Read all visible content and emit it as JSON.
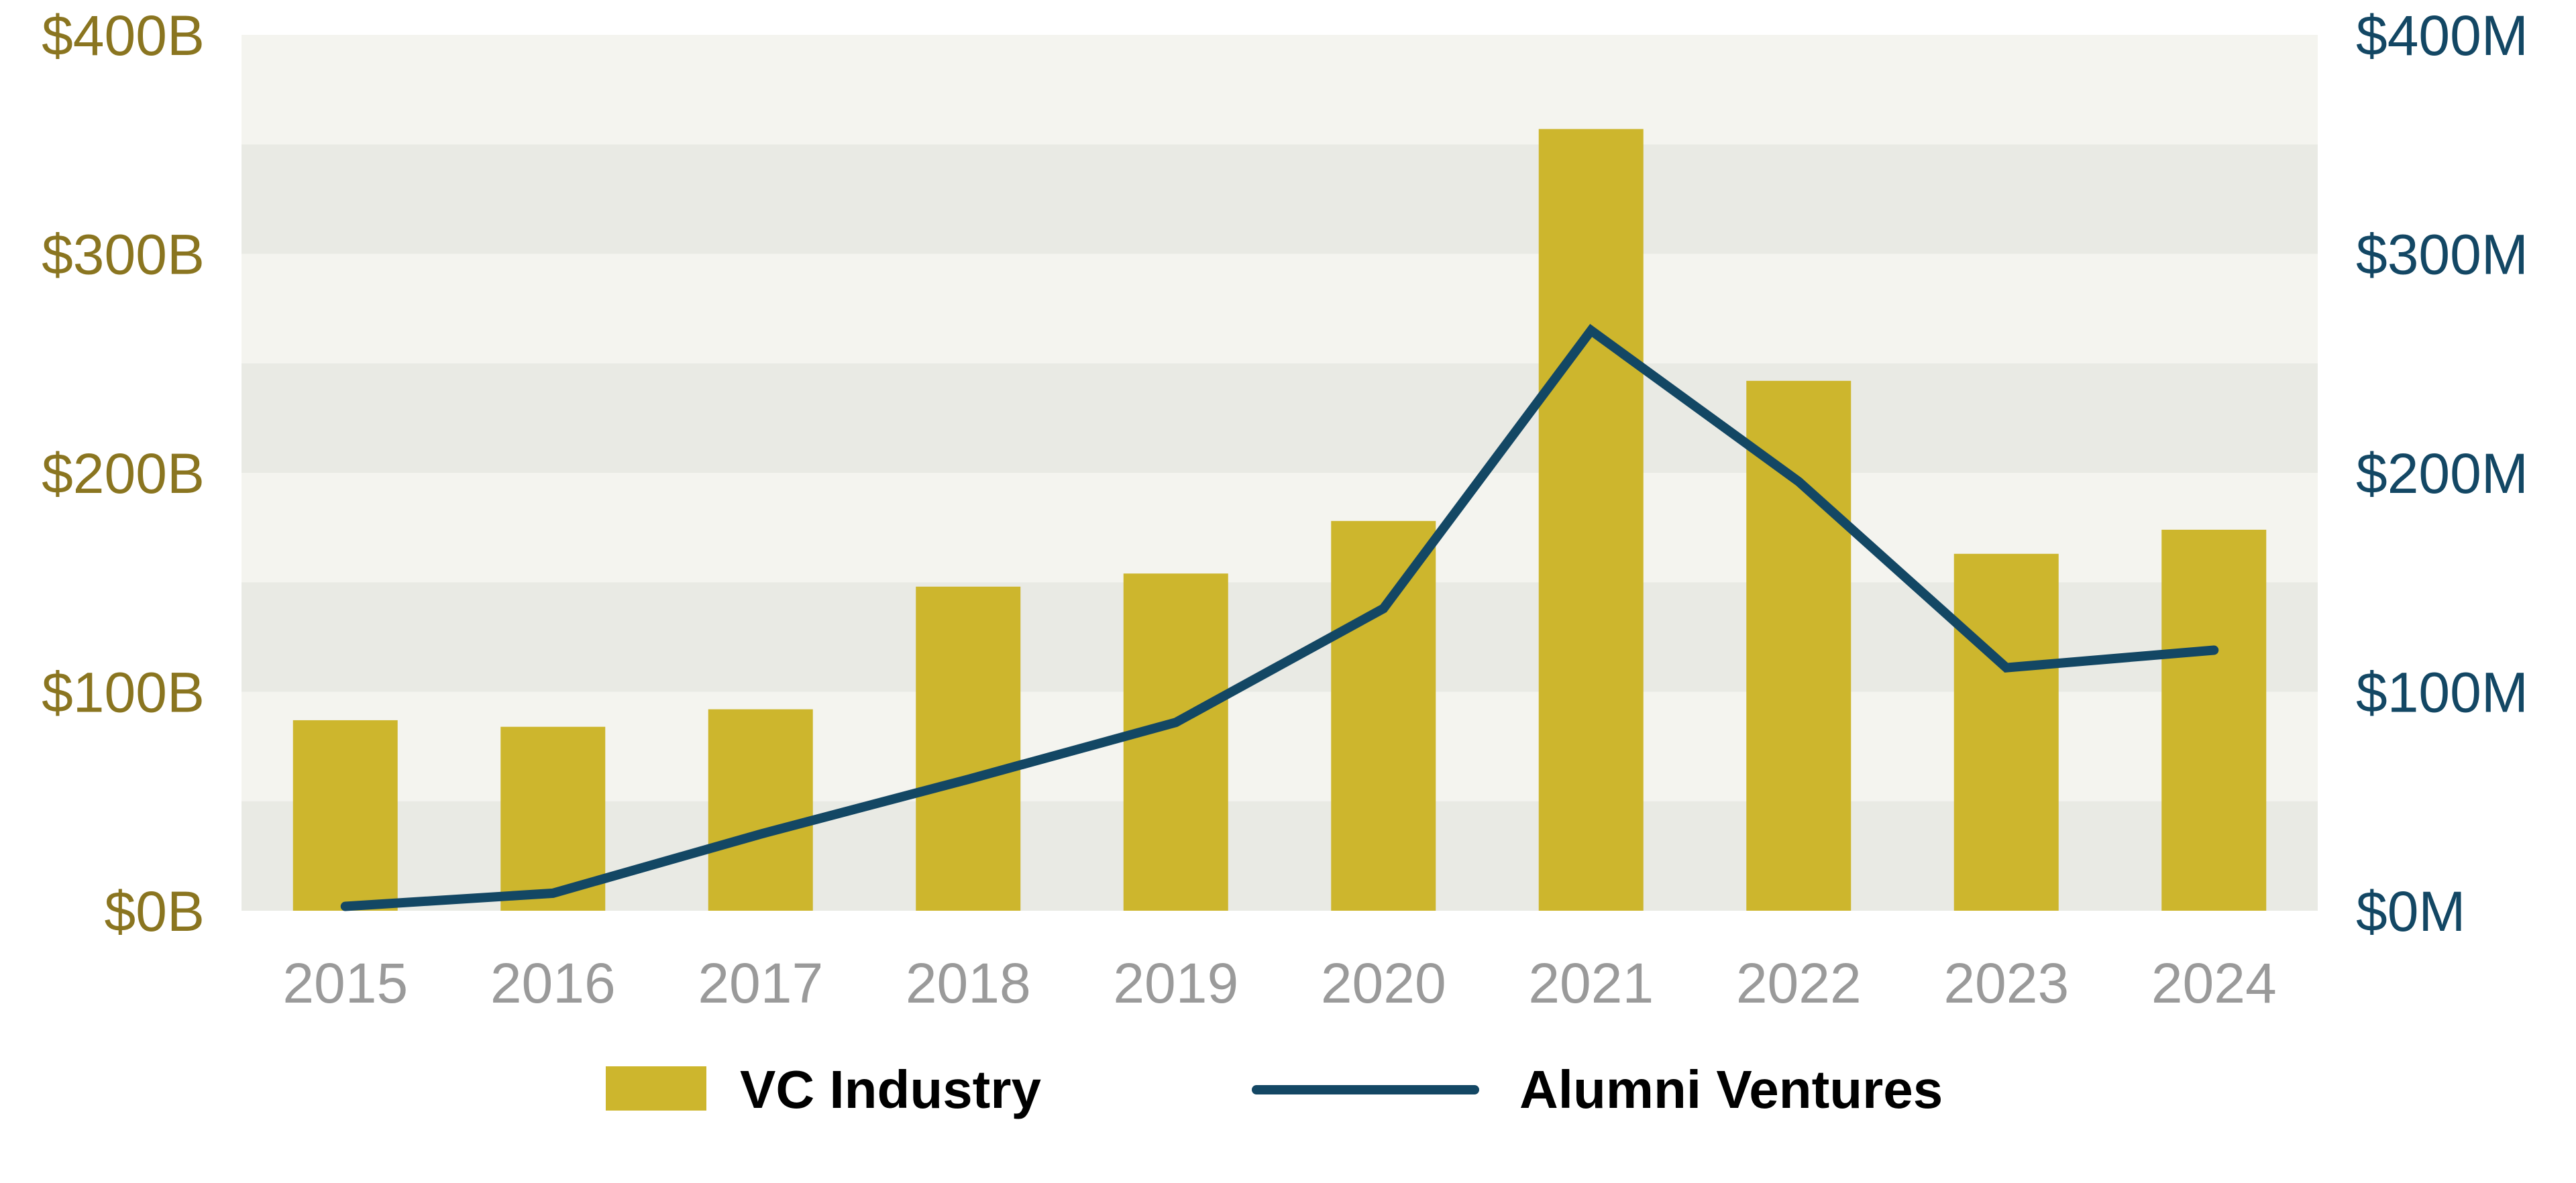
{
  "colors": {
    "bar": "#cdb62d",
    "line": "#134764",
    "left_axis_text": "#8a7520",
    "right_axis_text": "#134764",
    "x_axis_text": "#9a9a9a",
    "band_light": "#f4f4ef",
    "band_dark": "#e9eae4"
  },
  "chart_data": {
    "type": "bar+line",
    "title": "",
    "categories": [
      "2015",
      "2016",
      "2017",
      "2018",
      "2019",
      "2020",
      "2021",
      "2022",
      "2023",
      "2024"
    ],
    "series": [
      {
        "name": "VC Industry",
        "type": "bar",
        "axis": "left",
        "unit": "billions USD",
        "values": [
          87,
          84,
          92,
          148,
          154,
          178,
          357,
          242,
          163,
          174
        ]
      },
      {
        "name": "Alumni Ventures",
        "type": "line",
        "axis": "right",
        "unit": "millions USD",
        "values": [
          2,
          8,
          35,
          60,
          86,
          138,
          265,
          196,
          111,
          119
        ]
      }
    ],
    "left_axis": {
      "ylim": [
        0,
        400
      ],
      "ticks": [
        0,
        100,
        200,
        300,
        400
      ],
      "tick_labels": [
        "$0B",
        "$100B",
        "$200B",
        "$300B",
        "$400B"
      ]
    },
    "right_axis": {
      "ylim": [
        0,
        400
      ],
      "ticks": [
        0,
        100,
        200,
        300,
        400
      ],
      "tick_labels": [
        "$0M",
        "$100M",
        "$200M",
        "$300M",
        "$400M"
      ]
    },
    "legend": {
      "placement": "bottom-center",
      "entries": [
        "VC Industry",
        "Alumni Ventures"
      ]
    }
  }
}
